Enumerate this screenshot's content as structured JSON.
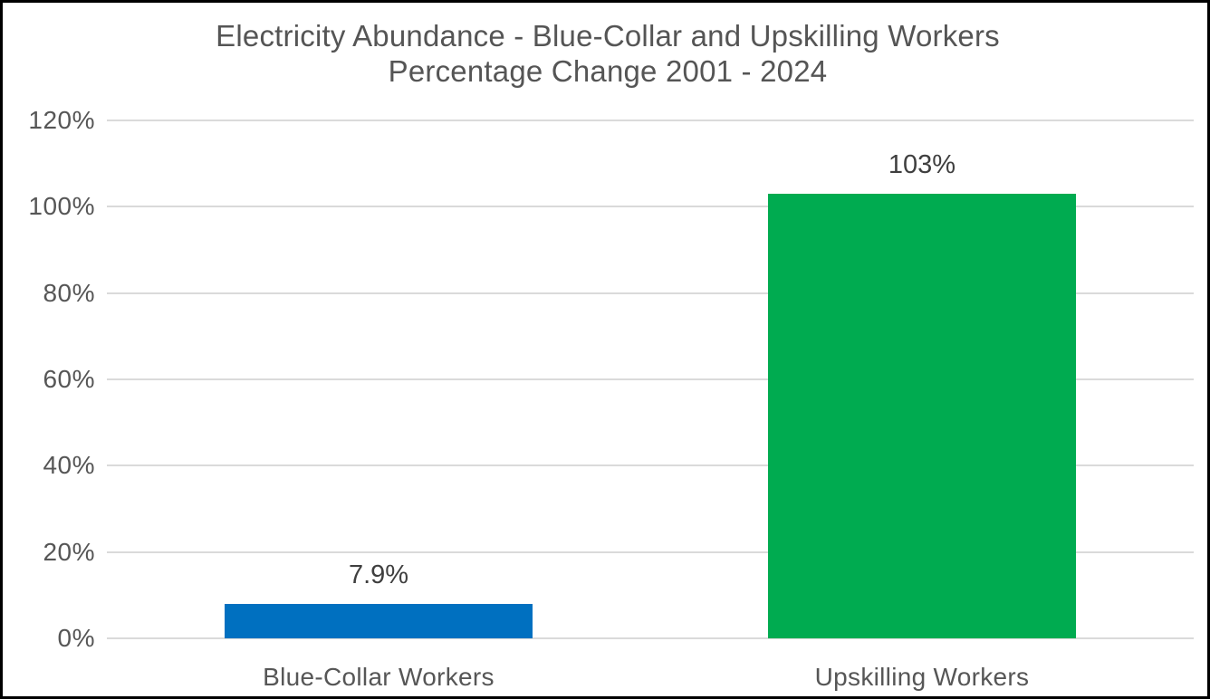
{
  "chart_data": {
    "type": "bar",
    "title": "Electricity Abundance - Blue-Collar and Upskilling Workers Percentage Change 2001 - 2024",
    "title_line1": "Electricity Abundance - Blue-Collar and Upskilling Workers",
    "title_line2": "Percentage Change 2001 - 2024",
    "categories": [
      "Blue-Collar Workers",
      "Upskilling Workers"
    ],
    "values": [
      7.9,
      103
    ],
    "value_labels": [
      "7.9%",
      "103%"
    ],
    "bar_colors": [
      "#0070C0",
      "#00AB50"
    ],
    "xlabel": "",
    "ylabel": "",
    "ylim": [
      0,
      120
    ],
    "ytick_values": [
      0,
      20,
      40,
      60,
      80,
      100,
      120
    ],
    "ytick_labels": [
      "0%",
      "20%",
      "40%",
      "60%",
      "80%",
      "100%",
      "120%"
    ],
    "grid": true,
    "legend": false,
    "legend_position": "none",
    "colors": {
      "grid": "#DADADA",
      "title_text": "#555555",
      "axis_text": "#565656",
      "value_text": "#3F3F3F",
      "background": "#FFFFFF",
      "border": "#000000"
    }
  }
}
